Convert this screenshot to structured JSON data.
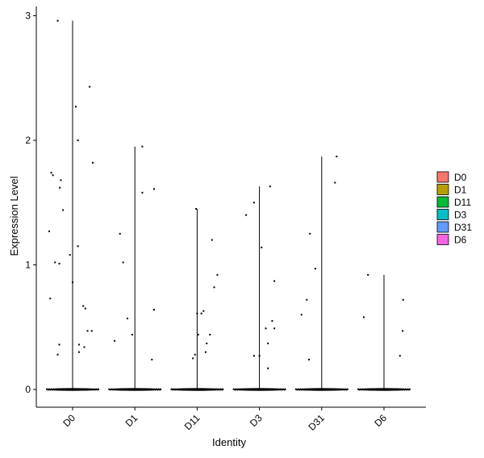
{
  "chart_data": {
    "type": "violin",
    "title": "",
    "xlabel": "Identity",
    "ylabel": "Expression Level",
    "ylim": [
      -0.15,
      3.1
    ],
    "yticks": [
      0,
      1,
      2,
      3
    ],
    "grid": false,
    "legend_position": "right",
    "categories": [
      "D0",
      "D1",
      "D11",
      "D3",
      "D31",
      "D6"
    ],
    "series": [
      {
        "name": "D0",
        "color": "#F8766D",
        "max": 2.96,
        "points": [
          [
            -0.44,
            1.27
          ],
          [
            -0.4,
            1.74
          ],
          [
            -0.37,
            1.72
          ],
          [
            -0.33,
            1.02
          ],
          [
            -0.24,
            1.62
          ],
          [
            -0.22,
            1.68
          ],
          [
            -0.18,
            1.44
          ],
          [
            -0.05,
            1.08
          ],
          [
            0.0,
            0.86
          ],
          [
            0.1,
            1.15
          ],
          [
            -0.28,
            2.96
          ],
          [
            0.06,
            2.27
          ],
          [
            0.1,
            2.0
          ],
          [
            0.32,
            2.43
          ],
          [
            0.38,
            1.82
          ],
          [
            -0.42,
            0.73
          ],
          [
            -0.28,
            0.28
          ],
          [
            -0.25,
            0.36
          ],
          [
            -0.25,
            1.01
          ],
          [
            0.12,
            0.36
          ],
          [
            0.12,
            0.3
          ],
          [
            0.2,
            0.67
          ],
          [
            0.24,
            0.65
          ],
          [
            0.28,
            0.47
          ],
          [
            0.22,
            0.34
          ],
          [
            0.36,
            0.47
          ]
        ]
      },
      {
        "name": "D1",
        "color": "#B79F00",
        "max": 1.95,
        "points": [
          [
            -0.38,
            0.39
          ],
          [
            -0.28,
            1.25
          ],
          [
            -0.22,
            1.02
          ],
          [
            -0.14,
            0.57
          ],
          [
            -0.05,
            0.44
          ],
          [
            0.14,
            1.95
          ],
          [
            0.14,
            1.58
          ],
          [
            0.32,
            0.24
          ],
          [
            0.36,
            1.61
          ],
          [
            0.36,
            0.64
          ]
        ]
      },
      {
        "name": "D11",
        "color": "#00BA38",
        "max": 1.45,
        "points": [
          [
            -0.08,
            0.25
          ],
          [
            -0.04,
            0.28
          ],
          [
            -0.02,
            1.45
          ],
          [
            0.0,
            0.61
          ],
          [
            0.02,
            0.44
          ],
          [
            0.08,
            0.61
          ],
          [
            0.12,
            0.63
          ],
          [
            0.16,
            0.3
          ],
          [
            0.18,
            0.37
          ],
          [
            0.24,
            0.44
          ],
          [
            0.28,
            1.2
          ],
          [
            0.32,
            0.82
          ],
          [
            0.38,
            0.92
          ]
        ]
      },
      {
        "name": "D3",
        "color": "#00BFC4",
        "max": 1.63,
        "points": [
          [
            -0.25,
            1.4
          ],
          [
            -0.1,
            1.5
          ],
          [
            -0.1,
            0.27
          ],
          [
            0.0,
            0.27
          ],
          [
            0.04,
            1.14
          ],
          [
            0.12,
            0.49
          ],
          [
            0.16,
            0.17
          ],
          [
            0.16,
            0.37
          ],
          [
            0.2,
            1.63
          ],
          [
            0.24,
            0.55
          ],
          [
            0.28,
            0.87
          ],
          [
            0.28,
            0.49
          ]
        ]
      },
      {
        "name": "D31",
        "color": "#619CFF",
        "max": 1.87,
        "points": [
          [
            -0.38,
            0.6
          ],
          [
            -0.28,
            0.72
          ],
          [
            -0.24,
            0.24
          ],
          [
            -0.22,
            1.25
          ],
          [
            -0.12,
            0.97
          ],
          [
            0.25,
            1.66
          ],
          [
            0.28,
            1.87
          ]
        ]
      },
      {
        "name": "D6",
        "color": "#F564E3",
        "max": 0.92,
        "points": [
          [
            -0.38,
            0.58
          ],
          [
            -0.3,
            0.92
          ],
          [
            0.3,
            0.27
          ],
          [
            0.35,
            0.47
          ],
          [
            0.36,
            0.72
          ]
        ]
      }
    ]
  }
}
